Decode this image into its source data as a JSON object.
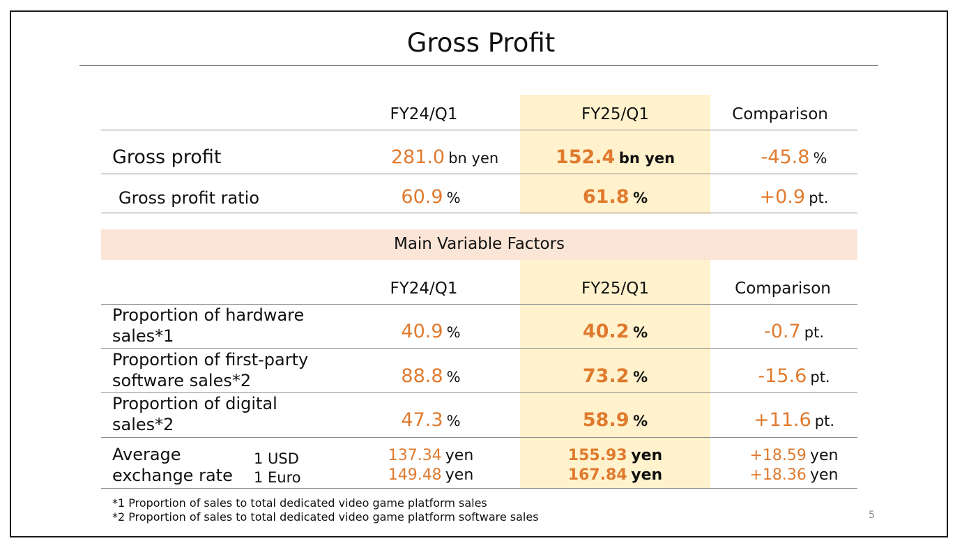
{
  "title": "Gross Profit",
  "colors": {
    "accent": "#e07a2e",
    "highlight_column": "#fff2cc",
    "section_bar": "#fbe5d6"
  },
  "columns": {
    "prev": "FY24/Q1",
    "curr": "FY25/Q1",
    "comparison": "Comparison"
  },
  "gross": {
    "profit": {
      "label": "Gross profit",
      "prev": {
        "value": "281.0",
        "unit": "bn yen"
      },
      "curr": {
        "value": "152.4",
        "unit": "bn yen"
      },
      "cmp": {
        "value": "-45.8",
        "unit": "%"
      }
    },
    "ratio": {
      "label": "Gross profit ratio",
      "prev": {
        "value": "60.9",
        "unit": "%"
      },
      "curr": {
        "value": "61.8",
        "unit": "%"
      },
      "cmp": {
        "value": "+0.9",
        "unit": "pt."
      }
    }
  },
  "factors": {
    "title": "Main Variable Factors",
    "hardware": {
      "label1": "Proportion of hardware",
      "label2": "sales*1",
      "prev": {
        "value": "40.9",
        "unit": "%"
      },
      "curr": {
        "value": "40.2",
        "unit": "%"
      },
      "cmp": {
        "value": "-0.7",
        "unit": "pt."
      }
    },
    "firstparty": {
      "label1": "Proportion of first-party",
      "label2": "software sales*2",
      "prev": {
        "value": "88.8",
        "unit": "%"
      },
      "curr": {
        "value": "73.2",
        "unit": "%"
      },
      "cmp": {
        "value": "-15.6",
        "unit": "pt."
      }
    },
    "digital": {
      "label1": "Proportion of digital",
      "label2": "sales*2",
      "prev": {
        "value": "47.3",
        "unit": "%"
      },
      "curr": {
        "value": "58.9",
        "unit": "%"
      },
      "cmp": {
        "value": "+11.6",
        "unit": "pt."
      }
    },
    "rate": {
      "label1": "Average",
      "label2": "exchange rate",
      "usd_label": "1 USD",
      "eur_label": "1 Euro",
      "unit": "yen",
      "usd": {
        "prev": "137.34",
        "curr": "155.93",
        "cmp": "+18.59"
      },
      "eur": {
        "prev": "149.48",
        "curr": "167.84",
        "cmp": "+18.36"
      }
    }
  },
  "footnotes": [
    "*1 Proportion of sales to total dedicated video game platform sales",
    "*2 Proportion of sales to total dedicated video game platform software sales"
  ],
  "page_number": "5"
}
